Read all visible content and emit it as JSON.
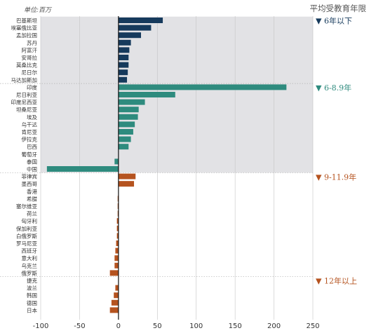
{
  "unit_label": "单位:百万",
  "chart_data": {
    "type": "bar",
    "orientation": "horizontal",
    "unit": "单位:百万",
    "xlim": [
      -100,
      250
    ],
    "xticks": [
      -100,
      -50,
      0,
      50,
      100,
      150,
      200,
      250
    ],
    "grid": true,
    "legend_title": "平均受教育年限",
    "groups": [
      {
        "name": "6年以下",
        "label": "▼ 6年以下",
        "color": "#163a5c",
        "shaded": true,
        "categories": [
          "巴基斯坦",
          "埃塞俄比亚",
          "孟加拉国",
          "苏丹",
          "阿富汗",
          "安哥拉",
          "莫桑比克",
          "尼日尔",
          "马达加斯加"
        ],
        "values": [
          57,
          42,
          29,
          16,
          14,
          13,
          13,
          12,
          11
        ]
      },
      {
        "name": "6-8.9年",
        "label": "▼ 6-8.9年",
        "color": "#2e8b7e",
        "shaded": true,
        "categories": [
          "印度",
          "尼日利亚",
          "印度尼西亚",
          "坦桑尼亚",
          "埃及",
          "乌干达",
          "肯尼亚",
          "伊拉克",
          "巴西",
          "葡萄牙",
          "泰国",
          "中国"
        ],
        "values": [
          216,
          73,
          34,
          26,
          25,
          21,
          19,
          16,
          13,
          0,
          -5,
          -92
        ]
      },
      {
        "name": "9-11.9年",
        "label": "▼ 9-11.9年",
        "color": "#b5531f",
        "shaded": false,
        "categories": [
          "菲律宾",
          "墨西哥",
          "香港",
          "希腊",
          "塞尔维亚",
          "荷兰",
          "匈牙利",
          "保加利亚",
          "白俄罗斯",
          "罗马尼亚",
          "西班牙",
          "意大利",
          "乌克兰",
          "俄罗斯"
        ],
        "values": [
          22,
          20,
          0,
          -1,
          -1,
          -1,
          -2,
          -2,
          -2,
          -3,
          -4,
          -5,
          -5,
          -11
        ]
      },
      {
        "name": "12年以上",
        "label": "▼ 12年以上",
        "color": "#b5531f",
        "shaded": false,
        "categories": [
          "捷克",
          "波兰",
          "韩国",
          "德国",
          "日本"
        ],
        "values": [
          0,
          -4,
          -6,
          -9,
          -11
        ]
      }
    ]
  }
}
